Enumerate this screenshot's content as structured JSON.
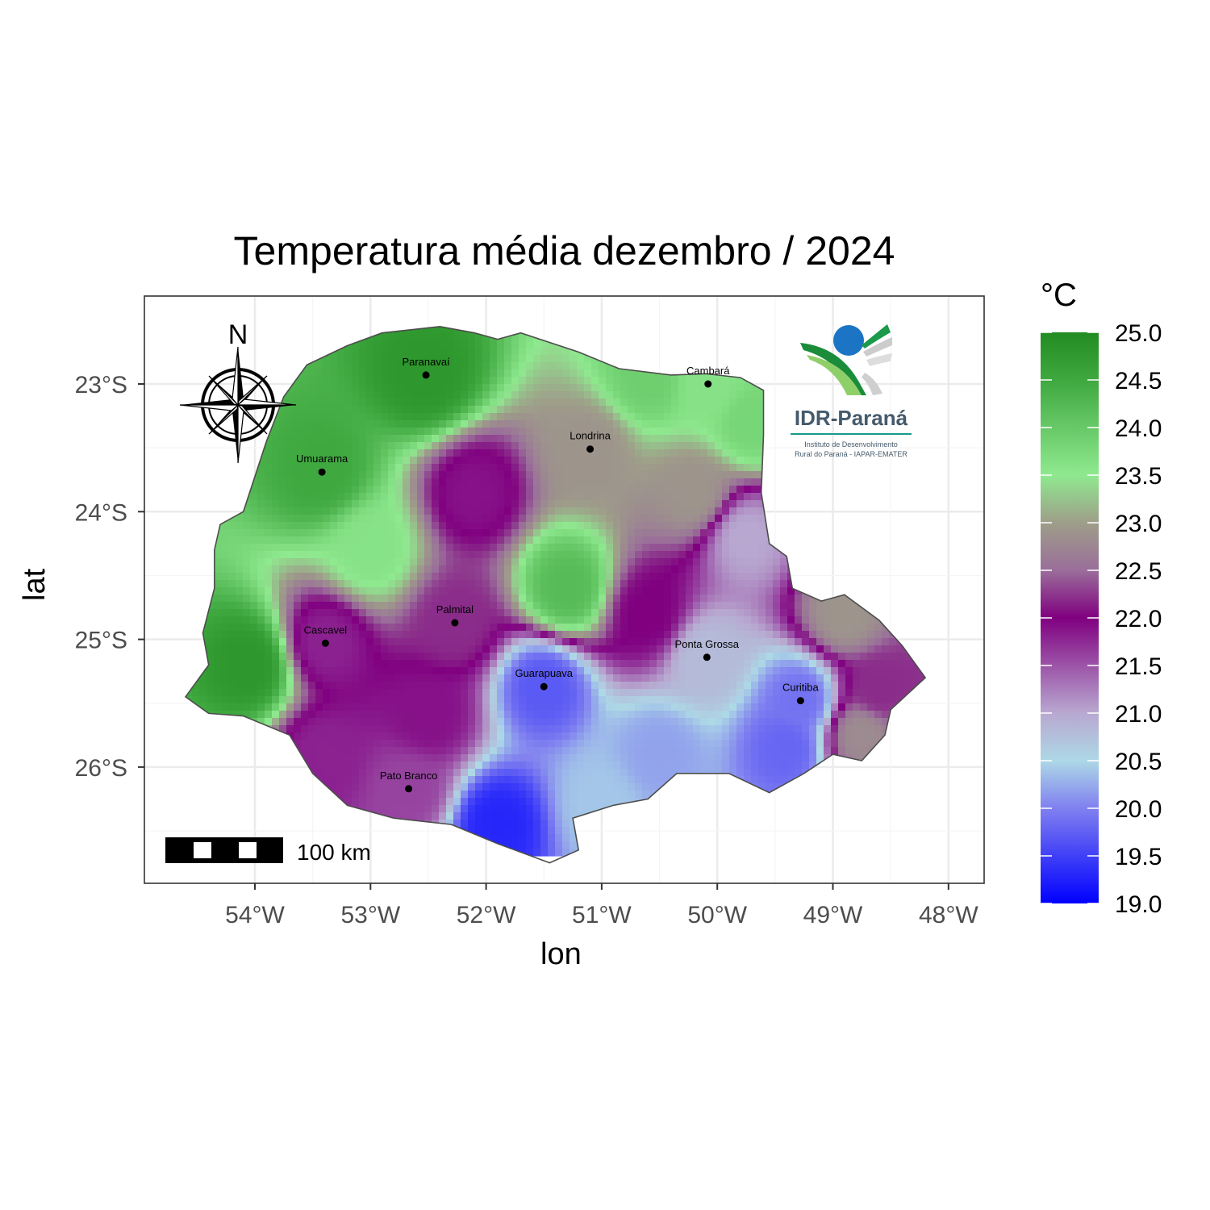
{
  "title": "Temperatura média dezembro / 2024",
  "xlabel": "lon",
  "ylabel": "lat",
  "x_ticks": [
    "54°W",
    "53°W",
    "52°W",
    "51°W",
    "50°W",
    "49°W",
    "48°W"
  ],
  "y_ticks": [
    "23°S",
    "24°S",
    "25°S",
    "26°S"
  ],
  "legend": {
    "title": "°C",
    "labels": [
      "25.0",
      "24.5",
      "24.0",
      "23.5",
      "23.0",
      "22.5",
      "22.0",
      "21.5",
      "21.0",
      "20.5",
      "20.0",
      "19.5",
      "19.0"
    ],
    "min": 19.0,
    "max": 25.0
  },
  "north_arrow_label": "N",
  "scale_bar_label": "100 km",
  "logo": {
    "name": "IDR-Paraná",
    "subtitle_1": "Instituto de Desenvolvimento",
    "subtitle_2": "Rural do Paraná - IAPAR-EMATER"
  },
  "colors": {
    "high": "#228b22",
    "mid_high": "#8fe98f",
    "mid": "#9e9e89",
    "mid_low": "#800080",
    "low_mid": "#add8e6",
    "low": "#0000ff",
    "grid": "#ebebeb",
    "panel_border": "#333333"
  },
  "chart_data": {
    "type": "heatmap",
    "title": "Temperatura média dezembro / 2024",
    "xlabel": "lon",
    "ylabel": "lat",
    "xlim": [
      -54.95,
      -47.7
    ],
    "ylim": [
      -26.9,
      -22.55
    ],
    "value_range": [
      19.0,
      25.0
    ],
    "unit": "°C",
    "cities": [
      {
        "name": "Paranavaí",
        "lon": -52.52,
        "lat": -22.93,
        "temp": 24.8
      },
      {
        "name": "Cambará",
        "lon": -50.08,
        "lat": -23.0,
        "temp": 23.6
      },
      {
        "name": "Londrina",
        "lon": -51.1,
        "lat": -23.51,
        "temp": 22.9
      },
      {
        "name": "Umuarama",
        "lon": -53.42,
        "lat": -23.69,
        "temp": 24.5
      },
      {
        "name": "Palmital",
        "lon": -52.27,
        "lat": -24.87,
        "temp": 22.2
      },
      {
        "name": "Cascavel",
        "lon": -53.39,
        "lat": -25.03,
        "temp": 21.8
      },
      {
        "name": "Ponta Grossa",
        "lon": -50.09,
        "lat": -25.14,
        "temp": 20.8
      },
      {
        "name": "Guarapuava",
        "lon": -51.5,
        "lat": -25.37,
        "temp": 19.7
      },
      {
        "name": "Curitiba",
        "lon": -49.28,
        "lat": -25.48,
        "temp": 19.9
      },
      {
        "name": "Pato Branco",
        "lon": -52.67,
        "lat": -26.17,
        "temp": 21.6
      }
    ],
    "extra_stations": [
      {
        "lon": -54.05,
        "lat": -25.2,
        "temp": 24.8
      },
      {
        "lon": -51.9,
        "lat": -26.45,
        "temp": 19.3
      },
      {
        "lon": -51.3,
        "lat": -24.6,
        "temp": 24.2
      },
      {
        "lon": -52.1,
        "lat": -23.85,
        "temp": 21.9
      },
      {
        "lon": -49.75,
        "lat": -24.2,
        "temp": 21.0
      },
      {
        "lon": -50.5,
        "lat": -25.9,
        "temp": 20.2
      },
      {
        "lon": -49.4,
        "lat": -25.85,
        "temp": 19.8
      },
      {
        "lon": -48.9,
        "lat": -24.8,
        "temp": 22.9
      },
      {
        "lon": -48.6,
        "lat": -25.4,
        "temp": 22.2
      },
      {
        "lon": -48.75,
        "lat": -25.75,
        "temp": 22.8
      },
      {
        "lon": -51.0,
        "lat": -26.3,
        "temp": 20.4
      },
      {
        "lon": -53.4,
        "lat": -25.9,
        "temp": 21.8
      },
      {
        "lon": -52.5,
        "lat": -25.6,
        "temp": 21.9
      },
      {
        "lon": -50.6,
        "lat": -24.8,
        "temp": 22.0
      },
      {
        "lon": -50.6,
        "lat": -22.95,
        "temp": 23.9
      },
      {
        "lon": -53.0,
        "lat": -24.3,
        "temp": 23.6
      },
      {
        "lon": -49.7,
        "lat": -23.3,
        "temp": 23.8
      },
      {
        "lon": -50.2,
        "lat": -23.85,
        "temp": 22.9
      }
    ],
    "boundary": [
      [
        -54.6,
        -25.45
      ],
      [
        -54.4,
        -25.2
      ],
      [
        -54.45,
        -24.95
      ],
      [
        -54.35,
        -24.6
      ],
      [
        -54.35,
        -24.3
      ],
      [
        -54.3,
        -24.1
      ],
      [
        -54.1,
        -24.0
      ],
      [
        -53.9,
        -23.45
      ],
      [
        -53.75,
        -23.1
      ],
      [
        -53.55,
        -22.85
      ],
      [
        -53.2,
        -22.7
      ],
      [
        -52.9,
        -22.6
      ],
      [
        -52.4,
        -22.55
      ],
      [
        -52.1,
        -22.6
      ],
      [
        -51.9,
        -22.65
      ],
      [
        -51.7,
        -22.6
      ],
      [
        -51.2,
        -22.75
      ],
      [
        -50.85,
        -22.88
      ],
      [
        -50.4,
        -22.93
      ],
      [
        -50.1,
        -22.92
      ],
      [
        -49.8,
        -22.95
      ],
      [
        -49.6,
        -23.05
      ],
      [
        -49.6,
        -23.4
      ],
      [
        -49.62,
        -23.85
      ],
      [
        -49.55,
        -24.25
      ],
      [
        -49.4,
        -24.35
      ],
      [
        -49.35,
        -24.6
      ],
      [
        -49.1,
        -24.7
      ],
      [
        -48.9,
        -24.65
      ],
      [
        -48.6,
        -24.85
      ],
      [
        -48.4,
        -25.05
      ],
      [
        -48.2,
        -25.3
      ],
      [
        -48.5,
        -25.55
      ],
      [
        -48.55,
        -25.75
      ],
      [
        -48.75,
        -25.95
      ],
      [
        -49.0,
        -25.9
      ],
      [
        -49.25,
        -26.05
      ],
      [
        -49.55,
        -26.2
      ],
      [
        -49.9,
        -26.05
      ],
      [
        -50.35,
        -26.05
      ],
      [
        -50.6,
        -26.25
      ],
      [
        -50.9,
        -26.3
      ],
      [
        -51.25,
        -26.4
      ],
      [
        -51.2,
        -26.65
      ],
      [
        -51.45,
        -26.75
      ],
      [
        -51.9,
        -26.6
      ],
      [
        -52.3,
        -26.45
      ],
      [
        -52.8,
        -26.4
      ],
      [
        -53.2,
        -26.3
      ],
      [
        -53.5,
        -26.05
      ],
      [
        -53.7,
        -25.75
      ],
      [
        -54.1,
        -25.6
      ],
      [
        -54.4,
        -25.58
      ]
    ]
  }
}
